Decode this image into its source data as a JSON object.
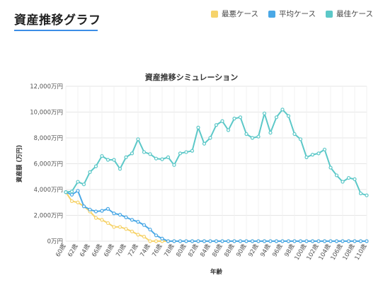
{
  "header": {
    "title": "資産推移グラフ"
  },
  "legend": [
    {
      "label": "最悪ケース",
      "color": "#f6d36b"
    },
    {
      "label": "平均ケース",
      "color": "#4aa8e6"
    },
    {
      "label": "最佳ケース",
      "color": "#5cc8c8"
    }
  ],
  "chart_data": {
    "type": "line",
    "title": "資産推移シミュレーション",
    "xlabel": "年齢",
    "ylabel": "資産額 (万円)",
    "ylim": [
      0,
      12000
    ],
    "yticks": [
      "0万円",
      "2,000万円",
      "4,000万円",
      "6,000万円",
      "8,000万円",
      "10,000万円",
      "12,000万円"
    ],
    "ytick_values": [
      0,
      2000,
      4000,
      6000,
      8000,
      10000,
      12000
    ],
    "x": [
      60,
      61,
      62,
      63,
      64,
      65,
      66,
      67,
      68,
      69,
      70,
      71,
      72,
      73,
      74,
      75,
      76,
      77,
      78,
      79,
      80,
      81,
      82,
      83,
      84,
      85,
      86,
      87,
      88,
      89,
      90,
      91,
      92,
      93,
      94,
      95,
      96,
      97,
      98,
      99,
      100,
      101,
      102,
      103,
      104,
      105,
      106,
      107,
      108,
      109,
      110
    ],
    "xtick_labels": [
      "60歳",
      "62歳",
      "64歳",
      "66歳",
      "68歳",
      "70歳",
      "72歳",
      "74歳",
      "76歳",
      "78歳",
      "80歳",
      "82歳",
      "84歳",
      "86歳",
      "88歳",
      "90歳",
      "92歳",
      "94歳",
      "96歳",
      "98歳",
      "100歳",
      "102歳",
      "104歳",
      "106歳",
      "108歳",
      "110歳"
    ],
    "grid": true,
    "legend_position": "top-right",
    "series": [
      {
        "name": "最悪ケース",
        "color": "#f6d36b",
        "values": [
          3800,
          3100,
          3000,
          2700,
          2300,
          1800,
          1650,
          1400,
          1100,
          1100,
          950,
          750,
          500,
          350,
          0,
          0,
          0,
          0,
          0,
          0,
          0,
          0,
          0,
          0,
          0,
          0,
          0,
          0,
          0,
          0,
          0,
          0,
          0,
          0,
          0,
          0,
          0,
          0,
          0,
          0,
          0,
          0,
          0,
          0,
          0,
          0,
          0,
          0,
          0,
          0,
          0
        ]
      },
      {
        "name": "平均ケース",
        "color": "#4aa8e6",
        "values": [
          3800,
          3600,
          3900,
          2700,
          2450,
          2300,
          2350,
          2500,
          2150,
          2050,
          1850,
          1650,
          1500,
          1250,
          900,
          450,
          200,
          0,
          0,
          0,
          0,
          0,
          0,
          0,
          0,
          0,
          0,
          0,
          0,
          0,
          0,
          0,
          0,
          0,
          0,
          0,
          0,
          0,
          0,
          0,
          0,
          0,
          0,
          0,
          0,
          0,
          0,
          0,
          0,
          0,
          0
        ]
      },
      {
        "name": "最佳ケース",
        "color": "#5cc8c8",
        "values": [
          3800,
          3850,
          4600,
          4400,
          5350,
          5800,
          6600,
          6300,
          6300,
          5600,
          6500,
          6800,
          7900,
          6900,
          6750,
          6400,
          6350,
          6500,
          5900,
          6800,
          6900,
          7000,
          8800,
          7550,
          8000,
          9000,
          9300,
          8600,
          9500,
          9600,
          8300,
          8000,
          8100,
          9900,
          8400,
          9600,
          10200,
          9700,
          8300,
          7900,
          6500,
          6700,
          6800,
          7100,
          5700,
          5100,
          4600,
          4900,
          4800,
          3700,
          3550
        ]
      }
    ]
  }
}
